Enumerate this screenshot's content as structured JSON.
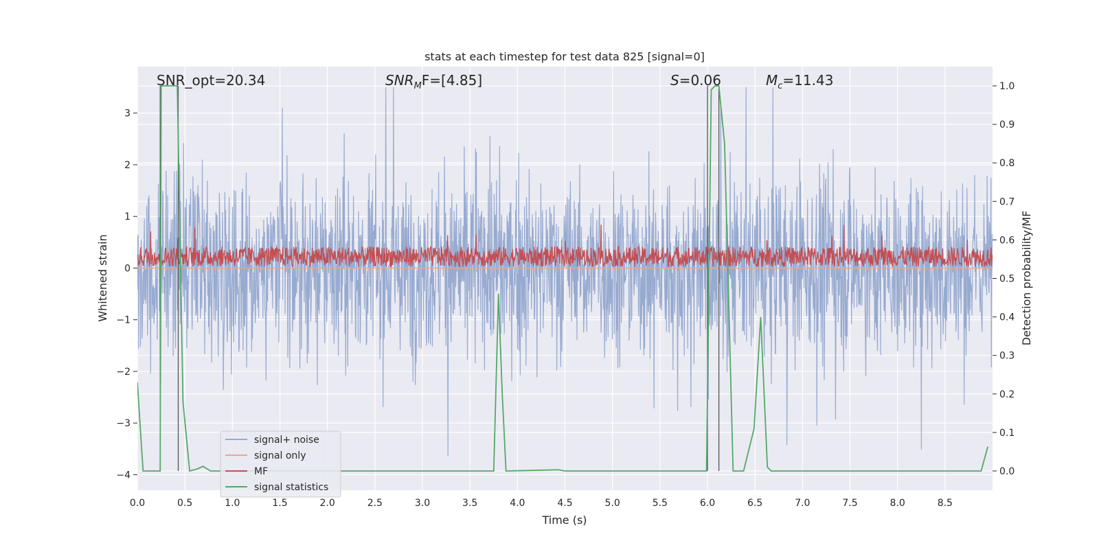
{
  "chart_data": {
    "type": "line",
    "title": "stats at each timestep for test data 825 [signal=0]",
    "xlabel": "Time (s)",
    "ylabel_left": "Whitened strain",
    "ylabel_right": "Detection probability/MF",
    "xlim": [
      0.0,
      9.0
    ],
    "ylim_left": [
      -4.3,
      3.9
    ],
    "ylim_right": [
      -0.05,
      1.05
    ],
    "x_ticks": [
      "0.0",
      "0.5",
      "1.0",
      "1.5",
      "2.0",
      "2.5",
      "3.0",
      "3.5",
      "4.0",
      "4.5",
      "5.0",
      "5.5",
      "6.0",
      "6.5",
      "7.0",
      "7.5",
      "8.0",
      "8.5"
    ],
    "y_ticks_left": [
      "−4",
      "−3",
      "−2",
      "−1",
      "0",
      "1",
      "2",
      "3"
    ],
    "y_ticks_right": [
      "0.0",
      "0.1",
      "0.2",
      "0.3",
      "0.4",
      "0.5",
      "0.6",
      "0.7",
      "0.8",
      "0.9",
      "1.0"
    ],
    "grid": true,
    "legend_position": "lower-left",
    "annotations": {
      "snr_opt": "SNR_opt=20.34",
      "snr_mf_italic": "SNR",
      "snr_mf_sub": "M",
      "snr_mf_rest": "F=[4.85]",
      "s_italic": "S",
      "s_rest": "=0.06",
      "mc_italic": "M",
      "mc_sub": "c",
      "mc_rest": "=11.43"
    },
    "vertical_markers_seconds": [
      0.24,
      0.43,
      6.0,
      6.12
    ],
    "colors": {
      "plot_bg": "#eaeaf2",
      "grid": "#ffffff",
      "noise": "#97aad0",
      "signal_only": "#e8a88a",
      "mf": "#c44e52",
      "stats": "#55a868",
      "marker": "#555555"
    },
    "series": [
      {
        "name": "signal+ noise",
        "axis": "left",
        "description_values": "dense whitened noise, amplitude mostly within ±2, peaks near ±3.5",
        "envelope": {
          "typical": 1.6,
          "peak": 3.5
        }
      },
      {
        "name": "signal only",
        "axis": "left",
        "x": [
          0.0,
          9.0
        ],
        "y": [
          0.0,
          0.0
        ]
      },
      {
        "name": "MF",
        "axis": "left",
        "description_values": "matched-filter output fluctuating between about 0.0 and 0.5, occasional spikes to ~0.8",
        "envelope": {
          "base": 0.22,
          "spread": 0.28,
          "peak": 0.85
        }
      },
      {
        "name": "signal statistics",
        "axis": "right",
        "x": [
          0.0,
          0.06,
          0.24,
          0.25,
          0.3,
          0.42,
          0.48,
          0.55,
          0.63,
          0.69,
          0.77,
          0.85,
          3.75,
          3.8,
          3.84,
          3.88,
          4.43,
          4.5,
          5.99,
          6.04,
          6.08,
          6.12,
          6.18,
          6.27,
          6.38,
          6.49,
          6.56,
          6.63,
          6.67,
          6.73,
          8.88,
          8.95
        ],
        "y": [
          0.23,
          0.0,
          0.0,
          1.0,
          1.0,
          1.0,
          0.18,
          0.0,
          0.005,
          0.012,
          0.0,
          0.0,
          0.0,
          0.46,
          0.2,
          0.0,
          0.003,
          0.0,
          0.0,
          0.99,
          1.0,
          1.0,
          0.85,
          0.0,
          0.0,
          0.11,
          0.4,
          0.01,
          0.0,
          0.0,
          0.0,
          0.063
        ]
      }
    ]
  }
}
